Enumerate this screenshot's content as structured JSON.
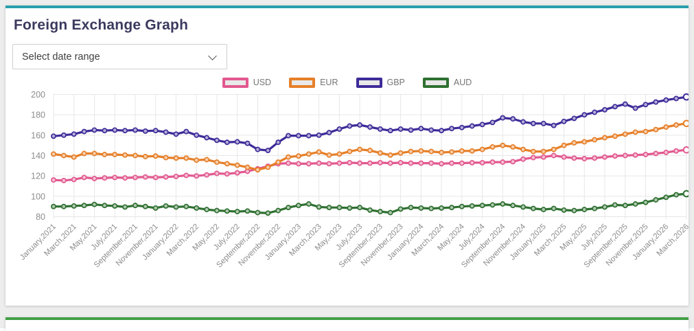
{
  "page": {
    "background": "#ededed"
  },
  "card": {
    "accent_color": "#29a0ab",
    "title": "Foreign Exchange Graph",
    "date_range_select": {
      "placeholder": "Select date range"
    }
  },
  "next_card": {
    "accent_color": "#43a047"
  },
  "chart_data": {
    "type": "line",
    "title": "",
    "xlabel": "",
    "ylabel": "",
    "ylim": [
      80,
      200
    ],
    "y_ticks": [
      80,
      100,
      120,
      140,
      160,
      180,
      200
    ],
    "grid": true,
    "legend_position": "top",
    "x_start": "January,2021",
    "x_end": "March,2026",
    "x_interval": "monthly",
    "x_tick_labels": [
      "January,2021",
      "March,2021",
      "May,2021",
      "July,2021",
      "September,2021",
      "November,2021",
      "January,2022",
      "March,2022",
      "May,2022",
      "July,2022",
      "September,2022",
      "November,2022",
      "January,2023",
      "March,2023",
      "May,2023",
      "July,2023",
      "September,2023",
      "November,2023",
      "January,2024",
      "March,2024",
      "May,2024",
      "July,2024",
      "September,2024",
      "November,2024",
      "January,2025",
      "March,2025",
      "May,2025",
      "July,2025",
      "September,2025",
      "November,2025",
      "January,2026",
      "March,2026"
    ],
    "style": {
      "grid_color": "#e7e7e7",
      "axis_text_color": "#8c8c8c",
      "legend_text_color": "#757575",
      "swatch_fill": "#e9e9e9"
    },
    "series": [
      {
        "name": "USD",
        "color": "#e2588f",
        "values": [
          116,
          115.5,
          116.5,
          118.5,
          117.5,
          118,
          118.5,
          118,
          118.5,
          119,
          118.5,
          119,
          119.5,
          120.5,
          120,
          121,
          122.5,
          122,
          123,
          124.5,
          127,
          129.5,
          132,
          132.5,
          132,
          132,
          132.5,
          132,
          132.5,
          133,
          132.5,
          132.5,
          133,
          132.5,
          133,
          132.5,
          132.5,
          132.5,
          132,
          132.5,
          132.5,
          133,
          133,
          133.5,
          133.5,
          134,
          136.5,
          138,
          138.5,
          140,
          138.5,
          137.5,
          137,
          137.5,
          138.5,
          139.5,
          140,
          140.5,
          141,
          142,
          143,
          144.5,
          145.5
        ]
      },
      {
        "name": "EUR",
        "color": "#e67f28",
        "values": [
          141.5,
          140,
          138.5,
          142,
          142,
          141,
          141,
          140.5,
          140,
          139,
          139.5,
          138,
          137.5,
          137.5,
          135.5,
          136,
          133.5,
          132,
          130.5,
          128.5,
          126,
          128.5,
          133.5,
          138.5,
          139.5,
          141.5,
          143.5,
          140.5,
          141.5,
          144,
          146,
          145,
          142.5,
          140.5,
          142.5,
          144,
          144.5,
          144,
          143,
          143.5,
          144.5,
          144.5,
          146,
          148.5,
          150,
          148.5,
          146,
          144,
          144,
          146,
          150,
          152.5,
          153.5,
          155.5,
          157.5,
          159,
          161,
          163,
          163.5,
          165.5,
          168,
          170,
          171.5
        ]
      },
      {
        "name": "GBP",
        "color": "#3e2b99",
        "values": [
          159,
          160,
          161,
          163.5,
          165,
          164.5,
          165,
          164.5,
          165,
          164,
          164.5,
          163,
          161,
          163.5,
          160,
          157.5,
          155,
          153,
          153.5,
          152,
          146,
          145,
          153,
          159.5,
          159.5,
          159.5,
          160,
          162.5,
          166,
          169,
          170,
          168,
          166,
          164.5,
          166,
          165,
          166.5,
          165,
          164.5,
          166.5,
          167.5,
          169,
          170.5,
          172.5,
          177,
          176,
          173,
          171.5,
          171.5,
          169.5,
          173.5,
          176.5,
          180,
          182.5,
          185,
          188,
          190.5,
          186.5,
          190,
          192.5,
          194.5,
          196,
          197.5
        ]
      },
      {
        "name": "AUD",
        "color": "#2f7031",
        "values": [
          90,
          90,
          90.5,
          91,
          92,
          91,
          90.5,
          89.5,
          91,
          90,
          88.5,
          90.5,
          89.5,
          90,
          88.5,
          87,
          86,
          85.5,
          85,
          85.5,
          84,
          83.5,
          86,
          89,
          91,
          92.5,
          89.5,
          89,
          89,
          88.5,
          89,
          86.5,
          85,
          84,
          87.5,
          89,
          88.5,
          88,
          88.5,
          89,
          90,
          90.5,
          91,
          91.5,
          92.5,
          91,
          89.5,
          88,
          87,
          88,
          86.5,
          86,
          87,
          88,
          89.5,
          91.5,
          91,
          92.5,
          94,
          96.5,
          99,
          101.5,
          102.5
        ]
      }
    ]
  }
}
